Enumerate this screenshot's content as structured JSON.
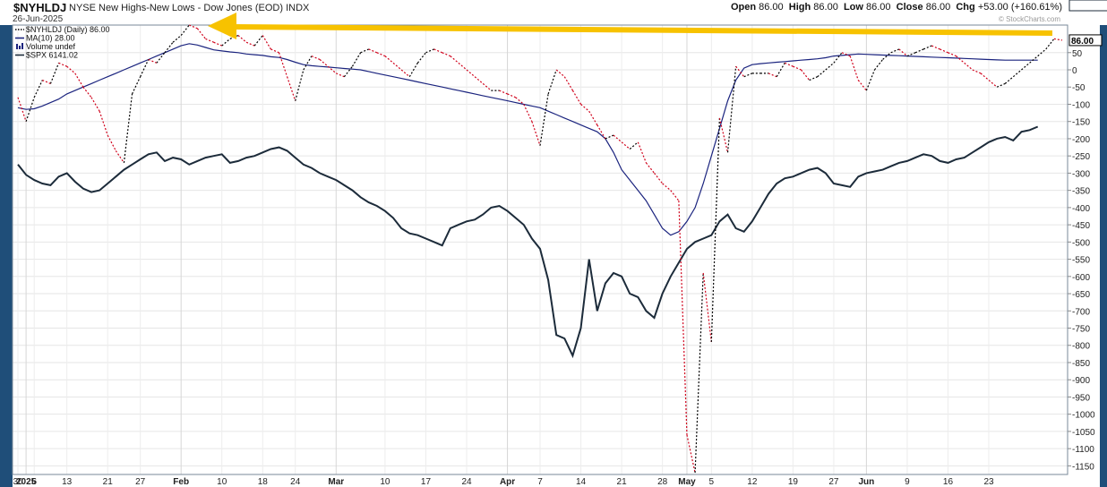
{
  "header": {
    "symbol": "$NYHLDJ",
    "title": "NYSE New Highs-New Lows - Dow Jones (EOD)",
    "exchange": "INDX",
    "date": "26-Jun-2025",
    "open_label": "Open",
    "open": "86.00",
    "high_label": "High",
    "high": "86.00",
    "low_label": "Low",
    "low": "86.00",
    "close_label": "Close",
    "close": "86.00",
    "chg_label": "Chg",
    "chg": "+53.00 (+160.61%)",
    "brand": "© StockCharts.com"
  },
  "legend": [
    {
      "text": "$NYHLDJ (Daily) 86.00",
      "color": "#000000",
      "style": "dotted"
    },
    {
      "text": "MA(10) 28.00",
      "color": "#1a237e",
      "style": "solid"
    },
    {
      "text": "Volume undef",
      "color": "#1a237e",
      "style": "bars"
    },
    {
      "text": "$SPX 6141.02",
      "color": "#1c2b3a",
      "style": "solid"
    }
  ],
  "colors": {
    "hlDown": "#d0021b",
    "hlUp": "#000000",
    "ma": "#1a237e",
    "spx": "#1c2b3a",
    "arrow": "#f7c200"
  },
  "chart_data": {
    "type": "line",
    "ylim": [
      -1175,
      130
    ],
    "yticks": [
      -1150,
      -1100,
      -1050,
      -1000,
      -950,
      -900,
      -850,
      -800,
      -750,
      -700,
      -650,
      -600,
      -550,
      -500,
      -450,
      -400,
      -350,
      -300,
      -250,
      -200,
      -150,
      -100,
      -50,
      0,
      50
    ],
    "ytick_labels": [
      "-1150",
      "-1100",
      "-1050",
      "-1000",
      "-950",
      "-900",
      "-850",
      "-800",
      "-750",
      "-700",
      "-650",
      "-600",
      "-550",
      "-500",
      "-450",
      "-400",
      "-350",
      "-300",
      "-250",
      "-200",
      "-150",
      "-100",
      "-50",
      "0",
      "50"
    ],
    "xlabels": [
      "30",
      "2025",
      "6",
      "13",
      "21",
      "27",
      "Feb",
      "10",
      "18",
      "24",
      "Mar",
      "10",
      "17",
      "24",
      "Apr",
      "7",
      "14",
      "21",
      "28",
      "May",
      "5",
      "12",
      "19",
      "27",
      "Jun",
      "9",
      "16",
      "23"
    ],
    "xlabel_index": [
      0,
      1,
      2,
      6,
      11,
      15,
      20,
      25,
      30,
      34,
      39,
      45,
      50,
      55,
      60,
      64,
      69,
      74,
      79,
      82,
      85,
      90,
      95,
      100,
      104,
      109,
      114,
      119
    ],
    "month_start_index": [
      1,
      20,
      39,
      60,
      82,
      104
    ],
    "series": [
      {
        "name": "$NYHLDJ",
        "values": [
          -80,
          -150,
          -80,
          -30,
          -40,
          20,
          10,
          -10,
          -50,
          -80,
          -120,
          -190,
          -235,
          -270,
          -70,
          -20,
          30,
          20,
          50,
          80,
          100,
          130,
          120,
          90,
          80,
          70,
          90,
          100,
          80,
          70,
          100,
          60,
          50,
          -20,
          -90,
          0,
          40,
          30,
          10,
          -10,
          -20,
          10,
          50,
          60,
          50,
          40,
          20,
          0,
          -20,
          20,
          50,
          60,
          50,
          40,
          20,
          0,
          -20,
          -40,
          -60,
          -60,
          -70,
          -80,
          -100,
          -150,
          -220,
          -70,
          0,
          -20,
          -60,
          -100,
          -120,
          -160,
          -200,
          -190,
          -210,
          -230,
          -210,
          -270,
          -300,
          -330,
          -350,
          -380,
          -1060,
          -1170,
          -590,
          -790,
          -140,
          -240,
          10,
          -20,
          -10,
          -10,
          -10,
          -20,
          20,
          10,
          0,
          -30,
          -20,
          0,
          20,
          50,
          40,
          -30,
          -60,
          0,
          30,
          50,
          60,
          40,
          50,
          60,
          70,
          60,
          50,
          40,
          20,
          0,
          -10,
          -30,
          -50,
          -40,
          -20,
          0,
          20,
          40,
          60,
          90,
          86
        ]
      },
      {
        "name": "MA(10)",
        "values": [
          -110,
          -115,
          -113,
          -105,
          -95,
          -85,
          -70,
          -60,
          -50,
          -40,
          -30,
          -20,
          -10,
          0,
          10,
          20,
          30,
          40,
          50,
          60,
          70,
          76,
          72,
          65,
          58,
          55,
          52,
          50,
          46,
          44,
          42,
          38,
          36,
          30,
          22,
          15,
          12,
          10,
          8,
          6,
          4,
          2,
          0,
          -5,
          -10,
          -15,
          -20,
          -25,
          -30,
          -35,
          -40,
          -45,
          -50,
          -55,
          -60,
          -65,
          -70,
          -75,
          -80,
          -85,
          -90,
          -95,
          -100,
          -105,
          -110,
          -120,
          -130,
          -140,
          -150,
          -160,
          -170,
          -180,
          -200,
          -240,
          -290,
          -320,
          -350,
          -380,
          -420,
          -460,
          -480,
          -470,
          -440,
          -400,
          -330,
          -250,
          -170,
          -90,
          -30,
          5,
          15,
          18,
          20,
          22,
          24,
          26,
          28,
          30,
          32,
          35,
          40,
          42,
          44,
          46,
          45,
          44,
          43,
          42,
          41,
          40,
          39,
          38,
          37,
          36,
          35,
          34,
          33,
          32,
          31,
          30,
          29,
          28,
          28,
          28,
          28,
          28
        ]
      },
      {
        "name": "$SPX",
        "values": [
          -275,
          -305,
          -320,
          -330,
          -335,
          -310,
          -300,
          -325,
          -345,
          -355,
          -350,
          -330,
          -310,
          -290,
          -275,
          -260,
          -245,
          -240,
          -265,
          -255,
          -260,
          -275,
          -265,
          -255,
          -250,
          -245,
          -270,
          -265,
          -255,
          -250,
          -240,
          -230,
          -225,
          -235,
          -255,
          -275,
          -285,
          -300,
          -310,
          -320,
          -335,
          -350,
          -370,
          -385,
          -395,
          -410,
          -430,
          -460,
          -475,
          -480,
          -490,
          -500,
          -510,
          -460,
          -450,
          -440,
          -435,
          -420,
          -400,
          -395,
          -410,
          -430,
          -450,
          -490,
          -520,
          -610,
          -770,
          -780,
          -830,
          -750,
          -550,
          -700,
          -620,
          -590,
          -600,
          -650,
          -660,
          -700,
          -720,
          -650,
          -600,
          -560,
          -520,
          -500,
          -490,
          -480,
          -440,
          -420,
          -460,
          -470,
          -440,
          -400,
          -360,
          -330,
          -315,
          -310,
          -300,
          -290,
          -285,
          -300,
          -330,
          -335,
          -340,
          -310,
          -300,
          -295,
          -290,
          -280,
          -270,
          -265,
          -255,
          -245,
          -250,
          -265,
          -270,
          -260,
          -255,
          -240,
          -225,
          -210,
          -200,
          -195,
          -205,
          -180,
          -175,
          -165
        ]
      }
    ],
    "last_label_main": "86.00",
    "last_label_ma": "28.00",
    "last_label_spx": "6141.02"
  }
}
